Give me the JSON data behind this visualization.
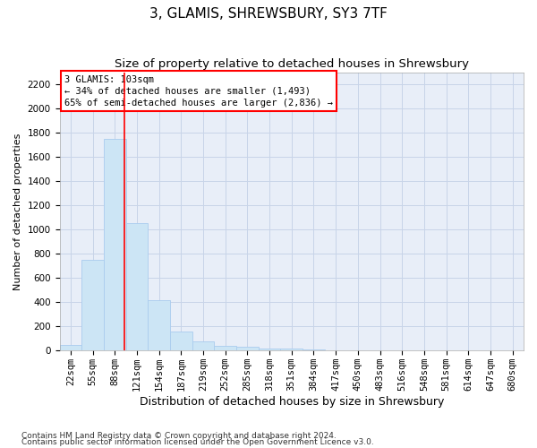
{
  "title": "3, GLAMIS, SHREWSBURY, SY3 7TF",
  "subtitle": "Size of property relative to detached houses in Shrewsbury",
  "xlabel": "Distribution of detached houses by size in Shrewsbury",
  "ylabel": "Number of detached properties",
  "footnote1": "Contains HM Land Registry data © Crown copyright and database right 2024.",
  "footnote2": "Contains public sector information licensed under the Open Government Licence v3.0.",
  "bin_labels": [
    "22sqm",
    "55sqm",
    "88sqm",
    "121sqm",
    "154sqm",
    "187sqm",
    "219sqm",
    "252sqm",
    "285sqm",
    "318sqm",
    "351sqm",
    "384sqm",
    "417sqm",
    "450sqm",
    "483sqm",
    "516sqm",
    "548sqm",
    "581sqm",
    "614sqm",
    "647sqm",
    "680sqm"
  ],
  "bar_values": [
    50,
    750,
    1750,
    1050,
    420,
    155,
    75,
    40,
    30,
    20,
    20,
    10,
    5,
    3,
    2,
    1,
    1,
    0,
    0,
    0,
    0
  ],
  "bar_color": "#cce5f5",
  "bar_edge_color": "#aaccee",
  "red_line_x": 2.45,
  "red_line_label": "3 GLAMIS: 103sqm",
  "annotation_line1": "← 34% of detached houses are smaller (1,493)",
  "annotation_line2": "65% of semi-detached houses are larger (2,836) →",
  "annotation_box_color": "white",
  "annotation_box_edge": "red",
  "ylim": [
    0,
    2300
  ],
  "yticks": [
    0,
    200,
    400,
    600,
    800,
    1000,
    1200,
    1400,
    1600,
    1800,
    2000,
    2200
  ],
  "grid_color": "#c8d4e8",
  "background_color": "#e8eef8",
  "title_fontsize": 11,
  "subtitle_fontsize": 9.5,
  "xlabel_fontsize": 9,
  "ylabel_fontsize": 8,
  "tick_fontsize": 7.5,
  "annot_fontsize": 7.5,
  "footnote_fontsize": 6.5
}
